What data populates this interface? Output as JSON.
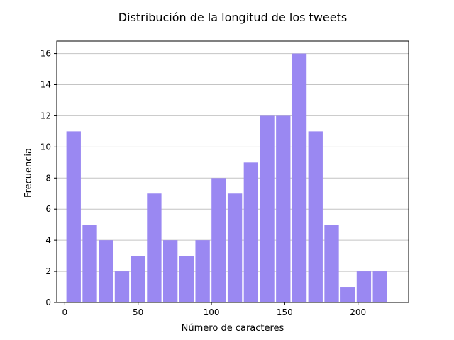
{
  "chart_data": {
    "type": "bar",
    "title": "Distribución de la longitud de los tweets",
    "xlabel": "Número de caracteres",
    "ylabel": "Frecuencia",
    "x_ticks": [
      0,
      50,
      100,
      150,
      200
    ],
    "y_ticks": [
      0,
      2,
      4,
      6,
      8,
      10,
      12,
      14,
      16
    ],
    "xlim": [
      -5.5,
      234.5
    ],
    "ylim": [
      0,
      16.8
    ],
    "grid": "y",
    "bar_color": "#9a88f2",
    "bins": [
      {
        "start": 0.5,
        "end": 11.5,
        "value": 11
      },
      {
        "start": 11.5,
        "end": 22.5,
        "value": 5
      },
      {
        "start": 22.5,
        "end": 33.5,
        "value": 4
      },
      {
        "start": 33.5,
        "end": 44.5,
        "value": 2
      },
      {
        "start": 44.5,
        "end": 55.5,
        "value": 3
      },
      {
        "start": 55.5,
        "end": 66.5,
        "value": 7
      },
      {
        "start": 66.5,
        "end": 77.5,
        "value": 4
      },
      {
        "start": 77.5,
        "end": 88.5,
        "value": 3
      },
      {
        "start": 88.5,
        "end": 99.5,
        "value": 4
      },
      {
        "start": 99.5,
        "end": 110.5,
        "value": 8
      },
      {
        "start": 110.5,
        "end": 121.5,
        "value": 7
      },
      {
        "start": 121.5,
        "end": 132.5,
        "value": 9
      },
      {
        "start": 132.5,
        "end": 143.5,
        "value": 12
      },
      {
        "start": 143.5,
        "end": 154.5,
        "value": 12
      },
      {
        "start": 154.5,
        "end": 165.5,
        "value": 16
      },
      {
        "start": 165.5,
        "end": 176.5,
        "value": 11
      },
      {
        "start": 176.5,
        "end": 187.5,
        "value": 5
      },
      {
        "start": 187.5,
        "end": 198.5,
        "value": 1
      },
      {
        "start": 198.5,
        "end": 209.5,
        "value": 2
      },
      {
        "start": 209.5,
        "end": 220.5,
        "value": 2
      }
    ]
  }
}
